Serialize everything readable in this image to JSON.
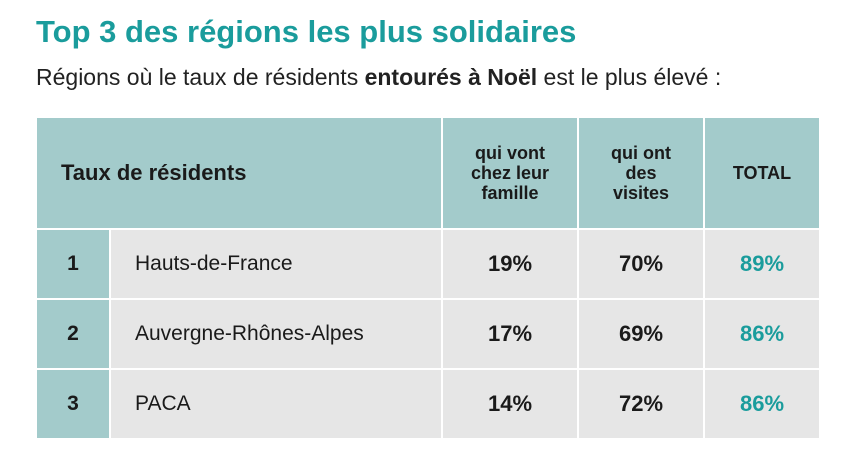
{
  "title": "Top 3 des régions les plus solidaires",
  "subtitle": {
    "before": "Régions où le taux de résidents ",
    "emphasis": "entourés à Noël",
    "after": " est le plus élevé :"
  },
  "colors": {
    "accent_teal": "#1a9c9c",
    "header_bg": "#a3cbcb",
    "cell_bg": "#e6e6e6"
  },
  "table": {
    "header": {
      "label": "Taux de résidents",
      "col_famille": [
        "qui vont",
        "chez leur",
        "famille"
      ],
      "col_visites": [
        "qui ont",
        "des",
        "visites"
      ],
      "col_total": "TOTAL"
    },
    "rows": [
      {
        "rank": "1",
        "region": "Hauts-de-France",
        "famille": "19%",
        "visites": "70%",
        "total": "89%"
      },
      {
        "rank": "2",
        "region": "Auvergne-Rhônes-Alpes",
        "famille": "17%",
        "visites": "69%",
        "total": "86%"
      },
      {
        "rank": "3",
        "region": "PACA",
        "famille": "14%",
        "visites": "72%",
        "total": "86%"
      }
    ]
  }
}
